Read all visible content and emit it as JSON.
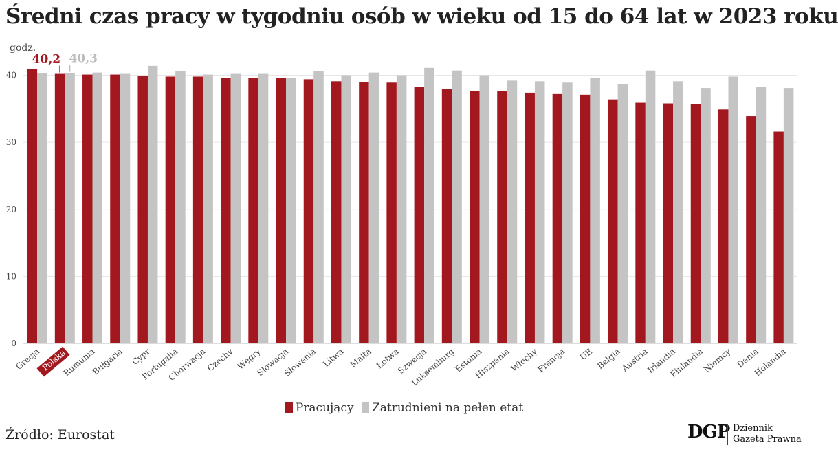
{
  "title": "Średni czas pracy w tygodniu osób w wieku od 15 do 64 lat w 2023 roku",
  "source": "Źródło: Eurostat",
  "logo": {
    "mark": "DGP",
    "line1": "Dziennik",
    "line2": "Gazeta Prawna"
  },
  "colors": {
    "pracujacy": "#a3171e",
    "etat": "#c4c4c4",
    "highlight_bg": "#a3171e"
  },
  "chart_data": {
    "type": "bar",
    "ylabel": "godz.",
    "ylim": [
      0,
      42
    ],
    "yticks": [
      0,
      10,
      20,
      30,
      40
    ],
    "grid": true,
    "legend_position": "bottom",
    "highlight": {
      "category": "Polska",
      "labels": [
        "40,2",
        "40,3"
      ]
    },
    "categories": [
      "Grecja",
      "Polska",
      "Rumunia",
      "Bułgaria",
      "Cypr",
      "Portugalia",
      "Chorwacja",
      "Czechy",
      "Węgry",
      "Słowacja",
      "Słowenia",
      "Litwa",
      "Malta",
      "Łotwa",
      "Szwecja",
      "Luksemburg",
      "Estonia",
      "Hiszpania",
      "Włochy",
      "Francja",
      "UE",
      "Belgia",
      "Austria",
      "Irlandia",
      "Finlandia",
      "Niemcy",
      "Dania",
      "Holandia"
    ],
    "series": [
      {
        "name": "Pracujący",
        "values": [
          40.9,
          40.2,
          40.1,
          40.1,
          39.9,
          39.8,
          39.8,
          39.6,
          39.6,
          39.6,
          39.4,
          39.1,
          39.0,
          38.9,
          38.3,
          37.9,
          37.7,
          37.6,
          37.4,
          37.2,
          37.1,
          36.4,
          35.9,
          35.8,
          35.7,
          34.9,
          33.9,
          31.6
        ]
      },
      {
        "name": "Zatrudnieni na pełen etat",
        "values": [
          40.3,
          40.3,
          40.4,
          40.2,
          41.4,
          40.6,
          40.1,
          40.2,
          40.2,
          39.6,
          40.6,
          40.0,
          40.4,
          40.0,
          41.1,
          40.7,
          40.0,
          39.2,
          39.1,
          38.9,
          39.6,
          38.7,
          40.7,
          39.1,
          38.1,
          39.8,
          38.3,
          38.1
        ]
      }
    ]
  }
}
